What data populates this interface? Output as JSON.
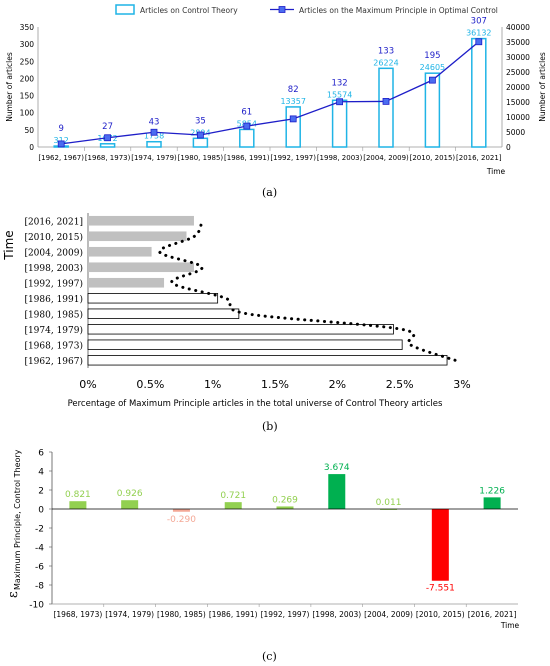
{
  "colors": {
    "cyan": "#1fb4e6",
    "navy": "#1e1ec8",
    "gray": "#c0c0c0",
    "pos_light": "#92d050",
    "pos_dark": "#00b050",
    "neg_light": "#f4a896",
    "neg_dark": "#ff0000",
    "black": "#000000"
  },
  "panel_labels": {
    "a": "(a)",
    "b": "(b)",
    "c": "(c)"
  },
  "chart_data": [
    {
      "type": "bar",
      "panel": "a",
      "categories": [
        "[1962, 1967)",
        "[1968, 1973)",
        "[1974, 1979)",
        "[1980, 1985)",
        "[1986, 1991)",
        "[1992, 1997)",
        "[1998, 2003)",
        "[2004, 2009)",
        "[2010, 2015)",
        "[2016, 2021]"
      ],
      "series": [
        {
          "name": "Articles on Control Theory",
          "kind": "bar",
          "axis": "right",
          "values": [
            312,
            1072,
            1758,
            2894,
            5854,
            13357,
            15574,
            26224,
            24605,
            36132
          ]
        },
        {
          "name": "Articles on the Maximum Principle in Optimal Control",
          "kind": "line",
          "axis": "left",
          "values": [
            9,
            27,
            43,
            35,
            61,
            82,
            132,
            133,
            195,
            307
          ]
        }
      ],
      "xlabel": "Time",
      "ylabel_left": "Number of articles",
      "ylabel_right": "Number of articles",
      "ylim_left": [
        0,
        350
      ],
      "yticks_left": [
        "0",
        "50",
        "100",
        "150",
        "200",
        "250",
        "300",
        "350"
      ],
      "ylim_right": [
        0,
        40000
      ],
      "yticks_right": [
        "0",
        "5000",
        "10000",
        "15000",
        "20000",
        "25000",
        "30000",
        "35000",
        "40000"
      ],
      "legend": "top"
    },
    {
      "type": "bar",
      "panel": "b",
      "orientation": "horizontal",
      "categories": [
        "[1962, 1967)",
        "[1968, 1973)",
        "[1974, 1979)",
        "[1980, 1985)",
        "[1986, 1991)",
        "[1992, 1997)",
        "[1998, 2003)",
        "[2004, 2009)",
        "[2010, 2015)",
        "[2016, 2021]"
      ],
      "values": [
        2.88,
        2.52,
        2.45,
        1.21,
        1.04,
        0.61,
        0.85,
        0.51,
        0.79,
        0.85
      ],
      "trend": "dotted curve",
      "xlabel": "Percentage of Maximum Principle articles in the total universe of Control Theory articles",
      "ylabel": "Time",
      "xlim": [
        0,
        3
      ],
      "xticks": [
        "0%",
        "0.5%",
        "1%",
        "1.5%",
        "2%",
        "2.5%",
        "3%"
      ]
    },
    {
      "type": "bar",
      "panel": "c",
      "categories": [
        "[1968, 1973)",
        "[1974, 1979)",
        "[1980, 1985)",
        "[1986, 1991)",
        "[1992, 1997)",
        "[1998, 2003)",
        "[2004, 2009)",
        "[2010, 2015)",
        "[2016, 2021]"
      ],
      "values": [
        0.821,
        0.926,
        -0.29,
        0.721,
        0.269,
        3.674,
        0.011,
        -7.551,
        1.226
      ],
      "value_labels": [
        "0.821",
        "0.926",
        "-0.290",
        "0.721",
        "0.269",
        "3.674",
        "0.011",
        "-7.551",
        "1.226"
      ],
      "xlabel": "Time",
      "ylabel": "ε",
      "ylabel_sub": "Maximum Principle, Control Theory",
      "ylim": [
        -10,
        6
      ],
      "yticks": [
        "-10",
        "-8",
        "-6",
        "-4",
        "-2",
        "0",
        "2",
        "4",
        "6"
      ]
    }
  ]
}
